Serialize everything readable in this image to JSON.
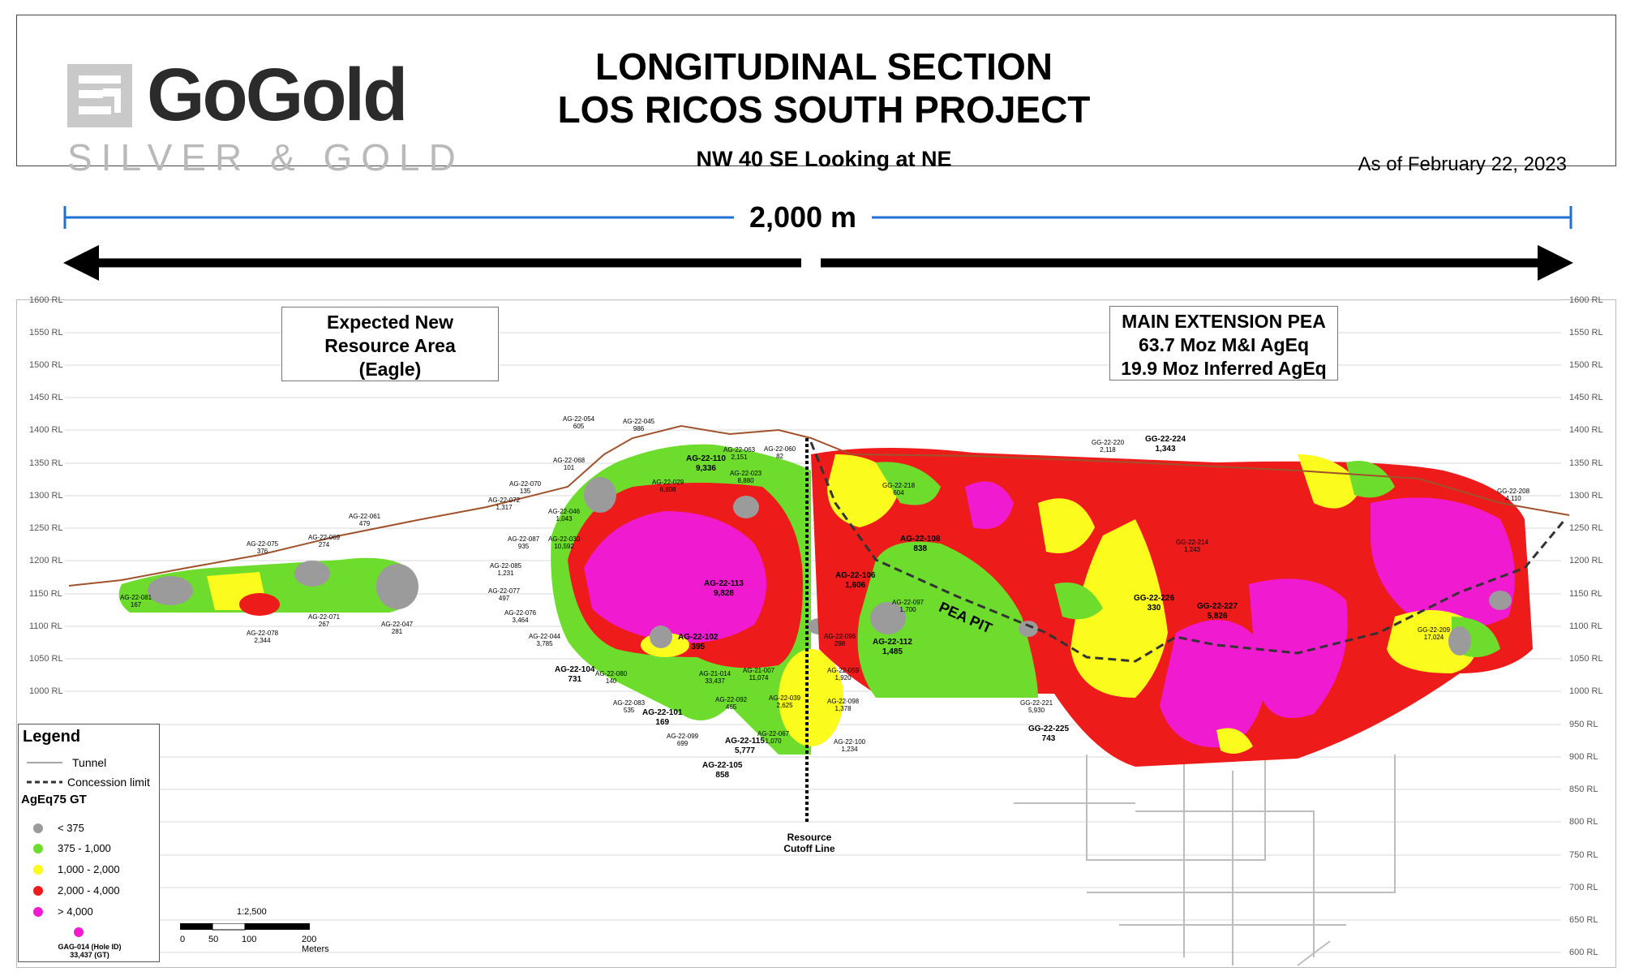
{
  "header": {
    "logo_main": "GoGold",
    "logo_sub": "SILVER & GOLD",
    "title_line1": "LONGITUDINAL SECTION",
    "title_line2": "LOS RICOS SOUTH PROJECT",
    "subtitle": "NW 40 SE Looking at NE",
    "as_of": "As of February 22, 2023"
  },
  "scale": {
    "length_label": "2,000 m"
  },
  "rl_labels": [
    "1600 RL",
    "1550 RL",
    "1500 RL",
    "1450 RL",
    "1400 RL",
    "1350 RL",
    "1300 RL",
    "1250 RL",
    "1200 RL",
    "1150 RL",
    "1100 RL",
    "1050 RL",
    "1000 RL",
    "950 RL",
    "900 RL",
    "850 RL",
    "800 RL",
    "750 RL",
    "700 RL",
    "650 RL",
    "600 RL"
  ],
  "areas": {
    "eagle": [
      "Expected New",
      "Resource Area",
      "(Eagle)"
    ],
    "pea": [
      "MAIN EXTENSION PEA",
      "63.7 Moz M&I AgEq",
      "19.9 Moz Inferred AgEq"
    ]
  },
  "cutoff": [
    "Resource",
    "Cutoff Line"
  ],
  "pea_pit": "PEA PIT",
  "colors": {
    "gray": "#9b9b9b",
    "green": "#6ddc2c",
    "yellow": "#fbfb1d",
    "red": "#ee1b1b",
    "magenta": "#f01bd0",
    "blue_line": "#1f6fd6",
    "topo": "#a0522d"
  },
  "holes": [
    {
      "id": "AG-22-081",
      "gt": "167"
    },
    {
      "id": "AG-22-075",
      "gt": "376"
    },
    {
      "id": "AG-22-078",
      "gt": "2,344"
    },
    {
      "id": "AG-22-069",
      "gt": "274"
    },
    {
      "id": "AG-22-071",
      "gt": "267"
    },
    {
      "id": "AG-22-061",
      "gt": "479"
    },
    {
      "id": "AG-22-047",
      "gt": "281"
    },
    {
      "id": "AG-22-054",
      "gt": "605"
    },
    {
      "id": "AG-22-045",
      "gt": "986"
    },
    {
      "id": "AG-22-068",
      "gt": "101"
    },
    {
      "id": "AG-22-070",
      "gt": "135"
    },
    {
      "id": "AG-22-072",
      "gt": "1,317"
    },
    {
      "id": "AG-22-046",
      "gt": "1,043"
    },
    {
      "id": "AG-22-087",
      "gt": "935"
    },
    {
      "id": "AG-22-030",
      "gt": "10,592"
    },
    {
      "id": "AG-22-085",
      "gt": "1,231"
    },
    {
      "id": "AG-22-077",
      "gt": "497"
    },
    {
      "id": "AG-22-076",
      "gt": "3,464"
    },
    {
      "id": "AG-22-044",
      "gt": "3,785"
    },
    {
      "id": "AG-22-104",
      "gt": "731"
    },
    {
      "id": "AG-22-080",
      "gt": "140"
    },
    {
      "id": "AG-22-083",
      "gt": "535"
    },
    {
      "id": "AG-22-101",
      "gt": "169"
    },
    {
      "id": "AG-22-099",
      "gt": "699"
    },
    {
      "id": "AG-22-110",
      "gt": "9,336"
    },
    {
      "id": "AG-22-063",
      "gt": "2,151"
    },
    {
      "id": "AG-22-060",
      "gt": "82"
    },
    {
      "id": "AG-22-023",
      "gt": "8,880"
    },
    {
      "id": "AG-22-029",
      "gt": "6,808"
    },
    {
      "id": "AG-22-113",
      "gt": "9,828"
    },
    {
      "id": "AG-22-102",
      "gt": "395"
    },
    {
      "id": "AG-21-014",
      "gt": "33,437"
    },
    {
      "id": "AG-22-092",
      "gt": "465"
    },
    {
      "id": "AG-21-007",
      "gt": "11,074"
    },
    {
      "id": "AG-22-115",
      "gt": "5,777"
    },
    {
      "id": "AG-22-105",
      "gt": "858"
    },
    {
      "id": "AG-22-067",
      "gt": "1,070"
    },
    {
      "id": "AG-22-039",
      "gt": "2,625"
    },
    {
      "id": "AG-22-106",
      "gt": "1,606"
    },
    {
      "id": "AG-22-108",
      "gt": "838"
    },
    {
      "id": "AG-22-096",
      "gt": "298"
    },
    {
      "id": "AG-22-059",
      "gt": "1,920"
    },
    {
      "id": "AG-22-098",
      "gt": "1,378"
    },
    {
      "id": "AG-22-100",
      "gt": "1,234"
    },
    {
      "id": "AG-22-112",
      "gt": "1,485"
    },
    {
      "id": "AG-22-097",
      "gt": "1,700"
    },
    {
      "id": "GG-22-218",
      "gt": "604"
    },
    {
      "id": "GG-22-220",
      "gt": "2,118"
    },
    {
      "id": "GG-22-224",
      "gt": "1,343"
    },
    {
      "id": "GG-22-214",
      "gt": "1,243"
    },
    {
      "id": "GG-22-226",
      "gt": "330"
    },
    {
      "id": "GG-22-227",
      "gt": "5,826"
    },
    {
      "id": "GG-22-221",
      "gt": "5,930"
    },
    {
      "id": "GG-22-225",
      "gt": "743"
    },
    {
      "id": "GG-22-209",
      "gt": "17,024"
    },
    {
      "id": "GG-22-208",
      "gt": "4,110"
    }
  ],
  "legend": {
    "title": "Legend",
    "tunnel": "Tunnel",
    "concession": "Concession limit",
    "heading": "AgEq75 GT",
    "classes": [
      "< 375",
      "375 - 1,000",
      "1,000 - 2,000",
      "2,000 - 4,000",
      "> 4,000"
    ],
    "example_id": "GAG-014 (Hole ID)",
    "example_gt": "33,437 (GT)"
  },
  "scalebar": {
    "ratio": "1:2,500",
    "ticks": [
      "0",
      "50",
      "100",
      "200 Meters"
    ]
  }
}
